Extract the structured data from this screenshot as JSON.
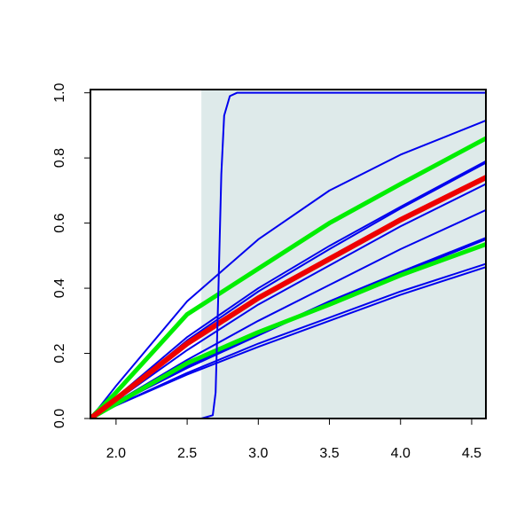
{
  "chart_data": {
    "type": "line",
    "x": [
      1.82,
      2.0,
      2.5,
      3.0,
      3.5,
      4.0,
      4.6
    ],
    "xlim": [
      1.82,
      4.6
    ],
    "ylim": [
      0,
      1.01
    ],
    "xticks": [
      {
        "value": 2,
        "label": "2.0"
      },
      {
        "value": 2.5,
        "label": "2.5"
      },
      {
        "value": 3,
        "label": "3.0"
      },
      {
        "value": 3.5,
        "label": "3.5"
      },
      {
        "value": 4,
        "label": "4.0"
      },
      {
        "value": 4.5,
        "label": "4.5"
      }
    ],
    "yticks": [
      {
        "value": 0,
        "label": "0.0"
      },
      {
        "value": 0.2,
        "label": "0.2"
      },
      {
        "value": 0.4,
        "label": "0.4"
      },
      {
        "value": 0.6,
        "label": "0.6"
      },
      {
        "value": 0.8,
        "label": "0.8"
      },
      {
        "value": 1,
        "label": "1.0"
      }
    ],
    "shade": {
      "xmin": 2.6,
      "xmax": 4.6,
      "color": "#deeaea"
    },
    "series": [
      {
        "color": "#0000ee",
        "width": 2,
        "values": [
          0,
          0.1,
          0.36,
          0.55,
          0.7,
          0.81,
          0.915
        ]
      },
      {
        "color": "#0000ee",
        "width": 2,
        "values": [
          0,
          0.065,
          0.25,
          0.4,
          0.53,
          0.65,
          0.79
        ]
      },
      {
        "color": "#0000ee",
        "width": 2,
        "values": [
          0,
          0.06,
          0.24,
          0.39,
          0.52,
          0.645,
          0.785
        ]
      },
      {
        "color": "#0000ee",
        "width": 2,
        "values": [
          0,
          0.055,
          0.21,
          0.35,
          0.47,
          0.59,
          0.72
        ]
      },
      {
        "color": "#0000ee",
        "width": 2,
        "values": [
          0,
          0.05,
          0.18,
          0.3,
          0.41,
          0.52,
          0.64
        ]
      },
      {
        "color": "#0000ee",
        "width": 2,
        "values": [
          0,
          0.045,
          0.16,
          0.26,
          0.36,
          0.45,
          0.555
        ]
      },
      {
        "color": "#0000ee",
        "width": 2,
        "values": [
          0,
          0.045,
          0.155,
          0.255,
          0.355,
          0.445,
          0.55
        ]
      },
      {
        "color": "#0000ee",
        "width": 2,
        "values": [
          0,
          0.04,
          0.14,
          0.23,
          0.31,
          0.39,
          0.475
        ]
      },
      {
        "color": "#0000ee",
        "width": 2,
        "values": [
          0,
          0.04,
          0.135,
          0.22,
          0.3,
          0.38,
          0.465
        ]
      },
      {
        "color": "#00ee00",
        "width": 5,
        "values": [
          0,
          0.08,
          0.32,
          0.46,
          0.6,
          0.72,
          0.86
        ]
      },
      {
        "color": "#00ee00",
        "width": 5,
        "values": [
          0,
          0.045,
          0.17,
          0.265,
          0.35,
          0.44,
          0.535
        ]
      },
      {
        "color": "#ee0000",
        "width": 6,
        "values": [
          0,
          0.06,
          0.23,
          0.37,
          0.49,
          0.61,
          0.74
        ]
      },
      {
        "color": "#0000ee",
        "width": 2,
        "x": [
          1.82,
          2.6,
          2.68,
          2.7,
          2.72,
          2.74,
          2.76,
          2.8,
          2.85,
          4.6
        ],
        "values": [
          0,
          0,
          0.01,
          0.08,
          0.4,
          0.75,
          0.93,
          0.99,
          1.0,
          1.0
        ]
      }
    ]
  }
}
